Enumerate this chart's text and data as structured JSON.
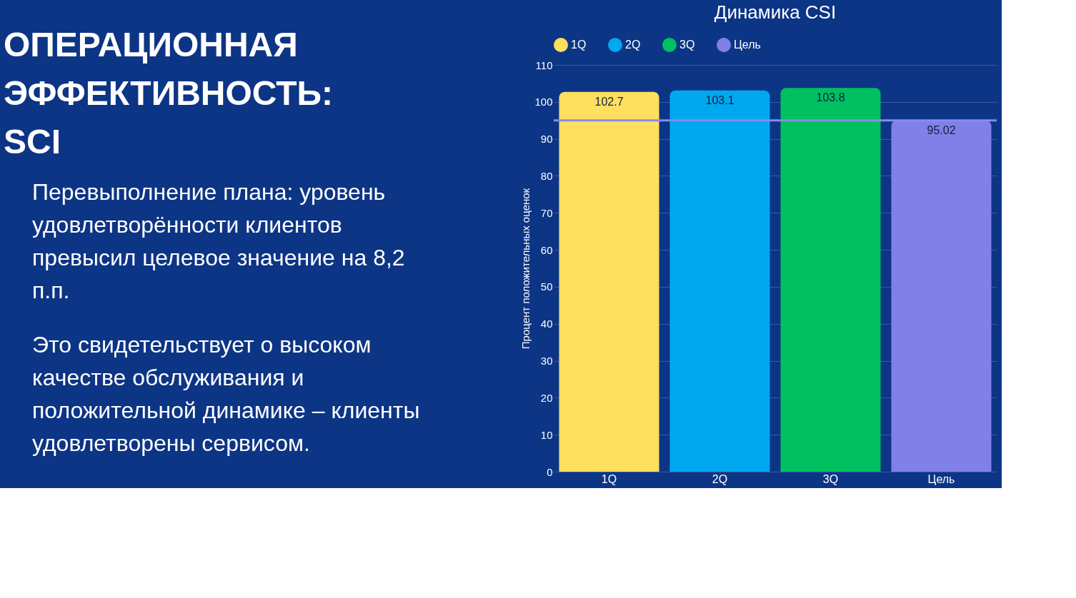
{
  "chart_data": {
    "type": "bar",
    "title": "Динамика CSI",
    "ylabel": "Процент положительных оценок",
    "categories": [
      "1Q",
      "2Q",
      "3Q",
      "Цель"
    ],
    "stacked": true,
    "series": [
      {
        "name": "1Q",
        "color": "#ffdf5e",
        "values": [
          102.7,
          null,
          null,
          null
        ]
      },
      {
        "name": "2Q",
        "color": "#00a8f0",
        "values": [
          null,
          103.1,
          null,
          null
        ]
      },
      {
        "name": "3Q",
        "color": "#00c060",
        "values": [
          null,
          null,
          103.8,
          null
        ]
      },
      {
        "name": "Цель",
        "color": "#8080e8",
        "values": [
          null,
          null,
          null,
          95.02
        ]
      }
    ],
    "ylim": [
      0,
      110
    ],
    "yticks": [
      0,
      10,
      20,
      30,
      40,
      50,
      60,
      70,
      80,
      90,
      100,
      110
    ],
    "grid": "y",
    "legend": "top",
    "data_labels": true,
    "ref_lines": [
      {
        "axis": "y",
        "value": 95,
        "color": "#8a8af0"
      }
    ],
    "annotations": [
      "ОПЕРАЦИОННАЯ ЭФФЕКТИВНОСТЬ: SCI",
      "Перевыполнение плана: уровень удовлетворённости клиентов превысил целевое значение на 8,2 п.п.",
      "Это свидетельствует о высоком качестве обслуживания и положительной динамике – клиенты удовлетворены сервисом."
    ]
  }
}
